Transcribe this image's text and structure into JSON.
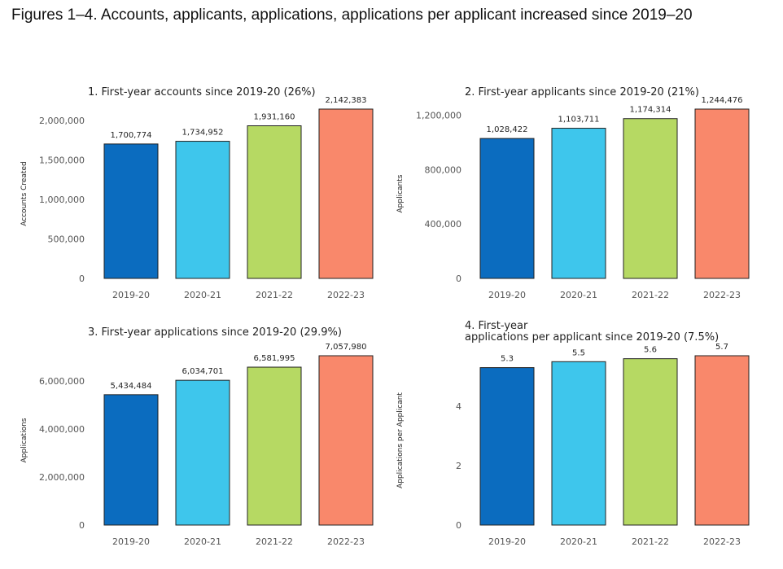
{
  "figure": {
    "title": "Figures 1–4. Accounts, applicants, applications, applications per applicant increased since 2019–20"
  },
  "colors": [
    "#0b6cbf",
    "#3ec6ec",
    "#b6d963",
    "#f9886b"
  ],
  "chart_data": [
    {
      "type": "bar",
      "title": "1. First-year accounts since 2019-20 (26%)",
      "categories": [
        "2019-20",
        "2020-21",
        "2021-22",
        "2022-23"
      ],
      "values": [
        1700774,
        1734952,
        1931160,
        2142383
      ],
      "value_labels": [
        "1,700,774",
        "1,734,952",
        "1,931,160",
        "2,142,383"
      ],
      "ylabel": "Accounts Created",
      "ylim": [
        0,
        2142383
      ],
      "yticks": [
        0,
        500000,
        1000000,
        1500000,
        2000000
      ],
      "ytick_labels": [
        "0",
        "500,000",
        "1,000,000",
        "1,500,000",
        "2,000,000"
      ],
      "grid": false
    },
    {
      "type": "bar",
      "title": "2. First-year applicants since 2019-20 (21%)",
      "categories": [
        "2019-20",
        "2020-21",
        "2021-22",
        "2022-23"
      ],
      "values": [
        1028422,
        1103711,
        1174314,
        1244476
      ],
      "value_labels": [
        "1,028,422",
        "1,103,711",
        "1,174,314",
        "1,244,476"
      ],
      "ylabel": "Applicants",
      "ylim": [
        0,
        1244476
      ],
      "yticks": [
        0,
        400000,
        800000,
        1200000
      ],
      "ytick_labels": [
        "0",
        "400,000",
        "800,000",
        "1,200,000"
      ],
      "grid": false
    },
    {
      "type": "bar",
      "title": "3. First-year applications since 2019-20 (29.9%)",
      "categories": [
        "2019-20",
        "2020-21",
        "2021-22",
        "2022-23"
      ],
      "values": [
        5434484,
        6034701,
        6581995,
        7057980
      ],
      "value_labels": [
        "5,434,484",
        "6,034,701",
        "6,581,995",
        "7,057,980"
      ],
      "ylabel": "Applications",
      "ylim": [
        0,
        7057980
      ],
      "yticks": [
        0,
        2000000,
        4000000,
        6000000
      ],
      "ytick_labels": [
        "0",
        "2,000,000",
        "4,000,000",
        "6,000,000"
      ],
      "grid": false
    },
    {
      "type": "bar",
      "title": [
        "4. First-year",
        "applications per applicant since 2019-20 (7.5%)"
      ],
      "categories": [
        "2019-20",
        "2020-21",
        "2021-22",
        "2022-23"
      ],
      "values": [
        5.3,
        5.5,
        5.6,
        5.7
      ],
      "value_labels": [
        "5.3",
        "5.5",
        "5.6",
        "5.7"
      ],
      "ylabel": "Applications per Applicant",
      "ylim": [
        0,
        5.7
      ],
      "yticks": [
        0,
        2,
        4
      ],
      "ytick_labels": [
        "0",
        "2",
        "4"
      ],
      "grid": false
    }
  ]
}
